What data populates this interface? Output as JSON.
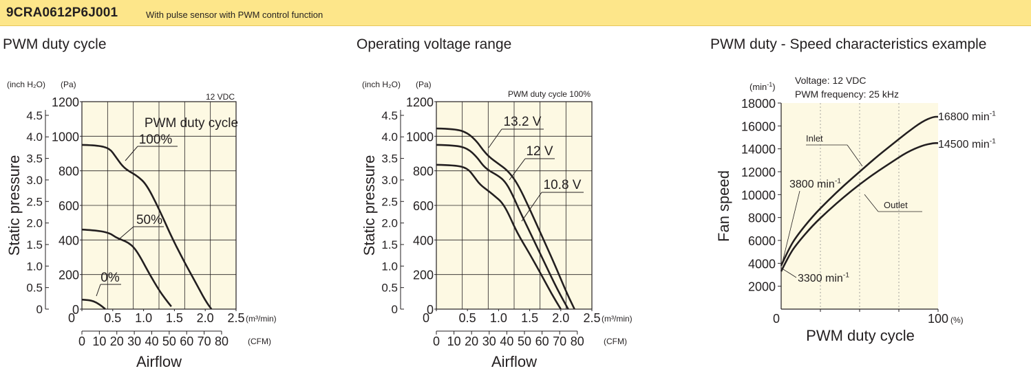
{
  "header": {
    "model": "9CRA0612P6J001",
    "description": "With pulse sensor with PWM control function",
    "band_color": "#fde68a"
  },
  "colors": {
    "plot_bg": "#fdf9e3",
    "grid": "#231f20",
    "curve": "#231f20"
  },
  "chart_data": [
    {
      "type": "line",
      "title": "PWM duty cycle",
      "ylabel": "Static pressure",
      "xlabel": "Airflow",
      "xlim": [
        0,
        2.5
      ],
      "ylim": [
        0,
        1200
      ],
      "condition": "12 VDC",
      "legend_title": "PWM duty cycle",
      "axes": {
        "y_left_unit": "(inch H₂O)",
        "y_right_unit": "(Pa)",
        "x_unit": "(m³/min)",
        "x2_unit": "(CFM)",
        "y_left_ticks": [
          "0",
          "0.5",
          "1.0",
          "1.5",
          "2.0",
          "2.5",
          "3.0",
          "3.5",
          "4.0",
          "4.5"
        ],
        "y_right_ticks": [
          "0",
          "200",
          "400",
          "600",
          "800",
          "1000",
          "1200"
        ],
        "x_ticks": [
          "0",
          "0.5",
          "1.0",
          "1.5",
          "2.0",
          "2.5"
        ],
        "x2_ticks": [
          "0",
          "10",
          "20",
          "30",
          "40",
          "50",
          "60",
          "70",
          "80"
        ],
        "grid": true
      },
      "series": [
        {
          "name": "100%",
          "x": [
            0,
            0.25,
            0.45,
            0.55,
            0.65,
            0.75,
            0.9,
            1.05,
            1.25,
            1.45,
            1.65,
            1.85,
            2.0,
            2.1
          ],
          "y": [
            950,
            948,
            930,
            880,
            830,
            800,
            770,
            720,
            580,
            420,
            280,
            150,
            50,
            0
          ]
        },
        {
          "name": "50%",
          "x": [
            0,
            0.25,
            0.45,
            0.55,
            0.65,
            0.75,
            0.85,
            0.95,
            1.1,
            1.25,
            1.35,
            1.45
          ],
          "y": [
            460,
            455,
            440,
            415,
            400,
            385,
            355,
            300,
            200,
            110,
            60,
            15
          ]
        },
        {
          "name": "0%",
          "x": [
            0,
            0.1,
            0.2,
            0.27,
            0.33,
            0.38
          ],
          "y": [
            55,
            53,
            45,
            30,
            15,
            0
          ]
        }
      ]
    },
    {
      "type": "line",
      "title": "Operating voltage range",
      "ylabel": "Static pressure",
      "xlabel": "Airflow",
      "xlim": [
        0,
        2.5
      ],
      "ylim": [
        0,
        1200
      ],
      "condition": "PWM duty cycle 100%",
      "axes": {
        "y_left_unit": "(inch H₂O)",
        "y_right_unit": "(Pa)",
        "x_unit": "(m³/min)",
        "x2_unit": "(CFM)",
        "y_left_ticks": [
          "0",
          "0.5",
          "1.0",
          "1.5",
          "2.0",
          "2.5",
          "3.0",
          "3.5",
          "4.0",
          "4.5"
        ],
        "y_right_ticks": [
          "0",
          "200",
          "400",
          "600",
          "800",
          "1000",
          "1200"
        ],
        "x_ticks": [
          "0",
          "0.5",
          "1.0",
          "1.5",
          "2.0",
          "2.5"
        ],
        "x2_ticks": [
          "0",
          "10",
          "20",
          "30",
          "40",
          "50",
          "60",
          "70",
          "80"
        ],
        "grid": true
      },
      "series": [
        {
          "name": "13.2 V",
          "x": [
            0,
            0.3,
            0.5,
            0.65,
            0.75,
            0.85,
            1.0,
            1.15,
            1.3,
            1.5,
            1.7,
            1.9,
            2.1,
            2.22
          ],
          "y": [
            1045,
            1043,
            1020,
            970,
            920,
            880,
            840,
            800,
            730,
            580,
            420,
            260,
            90,
            0
          ]
        },
        {
          "name": "12 V",
          "x": [
            0,
            0.3,
            0.5,
            0.65,
            0.75,
            0.85,
            1.0,
            1.1,
            1.2,
            1.35,
            1.55,
            1.75,
            1.95,
            2.12
          ],
          "y": [
            950,
            948,
            930,
            880,
            830,
            800,
            770,
            740,
            680,
            560,
            410,
            260,
            110,
            0
          ]
        },
        {
          "name": "10.8 V",
          "x": [
            0,
            0.3,
            0.5,
            0.6,
            0.7,
            0.85,
            0.95,
            1.05,
            1.15,
            1.3,
            1.5,
            1.7,
            1.85,
            2.0
          ],
          "y": [
            835,
            833,
            815,
            770,
            720,
            680,
            650,
            620,
            560,
            440,
            320,
            190,
            90,
            0
          ]
        }
      ]
    },
    {
      "type": "line",
      "title": "PWM duty - Speed characteristics example",
      "ylabel": "Fan speed",
      "xlabel": "PWM duty cycle",
      "xlim": [
        0,
        100
      ],
      "ylim": [
        0,
        18000
      ],
      "conditions": [
        "Voltage: 12 VDC",
        "PWM frequency: 25 kHz"
      ],
      "axes": {
        "y_unit_prefix": "(min",
        "y_unit_sup": "-1",
        "y_unit_suffix": ")",
        "y_ticks": [
          "2000",
          "4000",
          "6000",
          "8000",
          "10000",
          "12000",
          "14000",
          "16000",
          "18000"
        ],
        "x_ticks": [
          "0",
          "100"
        ],
        "x_unit": "(%)",
        "grid": true
      },
      "series": [
        {
          "name": "Inlet",
          "x": [
            0,
            5,
            10,
            20,
            30,
            40,
            50,
            60,
            70,
            80,
            90,
            97,
            100
          ],
          "y": [
            3800,
            5300,
            6400,
            8100,
            9500,
            10800,
            12000,
            13200,
            14300,
            15400,
            16400,
            16800,
            16800
          ]
        },
        {
          "name": "Outlet",
          "x": [
            0,
            5,
            10,
            20,
            30,
            40,
            50,
            60,
            70,
            80,
            90,
            97,
            100
          ],
          "y": [
            3300,
            4700,
            5700,
            7300,
            8600,
            9800,
            10900,
            11900,
            12800,
            13700,
            14300,
            14500,
            14500
          ]
        }
      ],
      "annotations": {
        "inlet_start": {
          "value": "3800 min",
          "sup": "-1"
        },
        "outlet_start": {
          "value": "3300 min",
          "sup": "-1"
        },
        "inlet_end": {
          "value": "16800 min",
          "sup": "-1"
        },
        "outlet_end": {
          "value": "14500 min",
          "sup": "-1"
        }
      }
    }
  ]
}
